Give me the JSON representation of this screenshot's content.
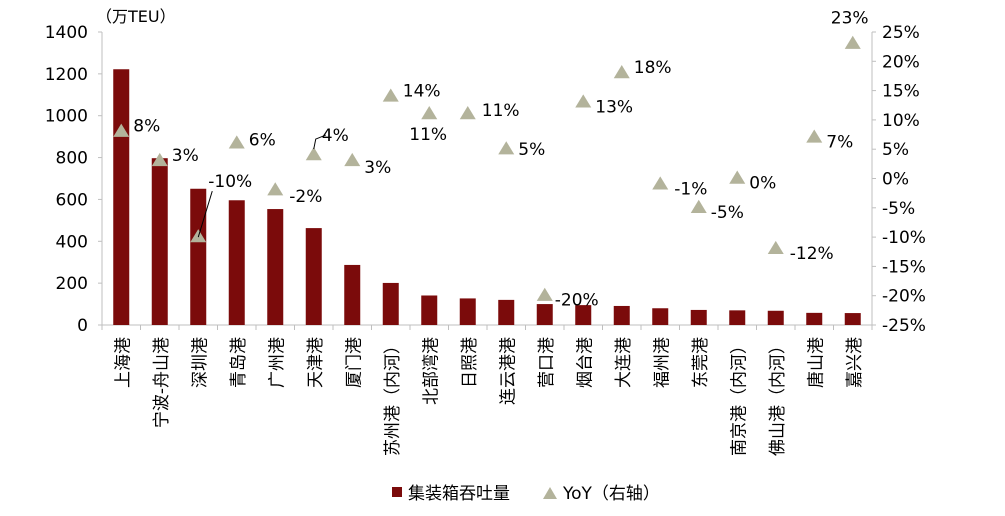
{
  "chart_data": {
    "type": "bar",
    "unit_label": "（万TEU）",
    "categories": [
      "上海港",
      "宁波-舟山港",
      "深圳港",
      "青岛港",
      "广州港",
      "天津港",
      "厦门港",
      "苏州港（内河）",
      "北部湾港",
      "日照港",
      "连云港港",
      "营口港",
      "烟台港",
      "大连港",
      "福州港",
      "东莞港",
      "南京港（内河）",
      "佛山港（内河）",
      "唐山港",
      "嘉兴港"
    ],
    "series": [
      {
        "name": "集装箱吞吐量",
        "axis": "left",
        "type": "bar",
        "color": "#7B0B0B",
        "values": [
          1222,
          797,
          651,
          596,
          554,
          463,
          287,
          201,
          141,
          127,
          120,
          100,
          95,
          91,
          80,
          72,
          70,
          68,
          58,
          57
        ]
      },
      {
        "name": "YoY（右轴）",
        "axis": "right",
        "type": "scatter",
        "marker": "triangle",
        "color": "#B3B39B",
        "values": [
          8,
          3,
          -10,
          6,
          -2,
          4,
          3,
          14,
          11,
          11,
          5,
          -20,
          13,
          18,
          -1,
          -5,
          0,
          -12,
          7,
          23
        ],
        "labels": [
          "8%",
          "3%",
          "-10%",
          "6%",
          "-2%",
          "4%",
          "3%",
          "14%",
          "11%",
          "11%",
          "5%",
          "-20%",
          "13%",
          "18%",
          "-1%",
          "-5%",
          "0%",
          "-12%",
          "7%",
          "23%"
        ]
      }
    ],
    "y_left": {
      "lim": [
        0,
        1400
      ],
      "ticks": [
        "0",
        "200",
        "400",
        "600",
        "800",
        "1000",
        "1200",
        "1400"
      ]
    },
    "y_right": {
      "lim": [
        -25,
        25
      ],
      "ticks": [
        "-25%",
        "-20%",
        "-15%",
        "-10%",
        "-5%",
        "0%",
        "5%",
        "10%",
        "15%",
        "20%",
        "25%"
      ]
    },
    "legend_position": "bottom-center",
    "grid": false
  }
}
